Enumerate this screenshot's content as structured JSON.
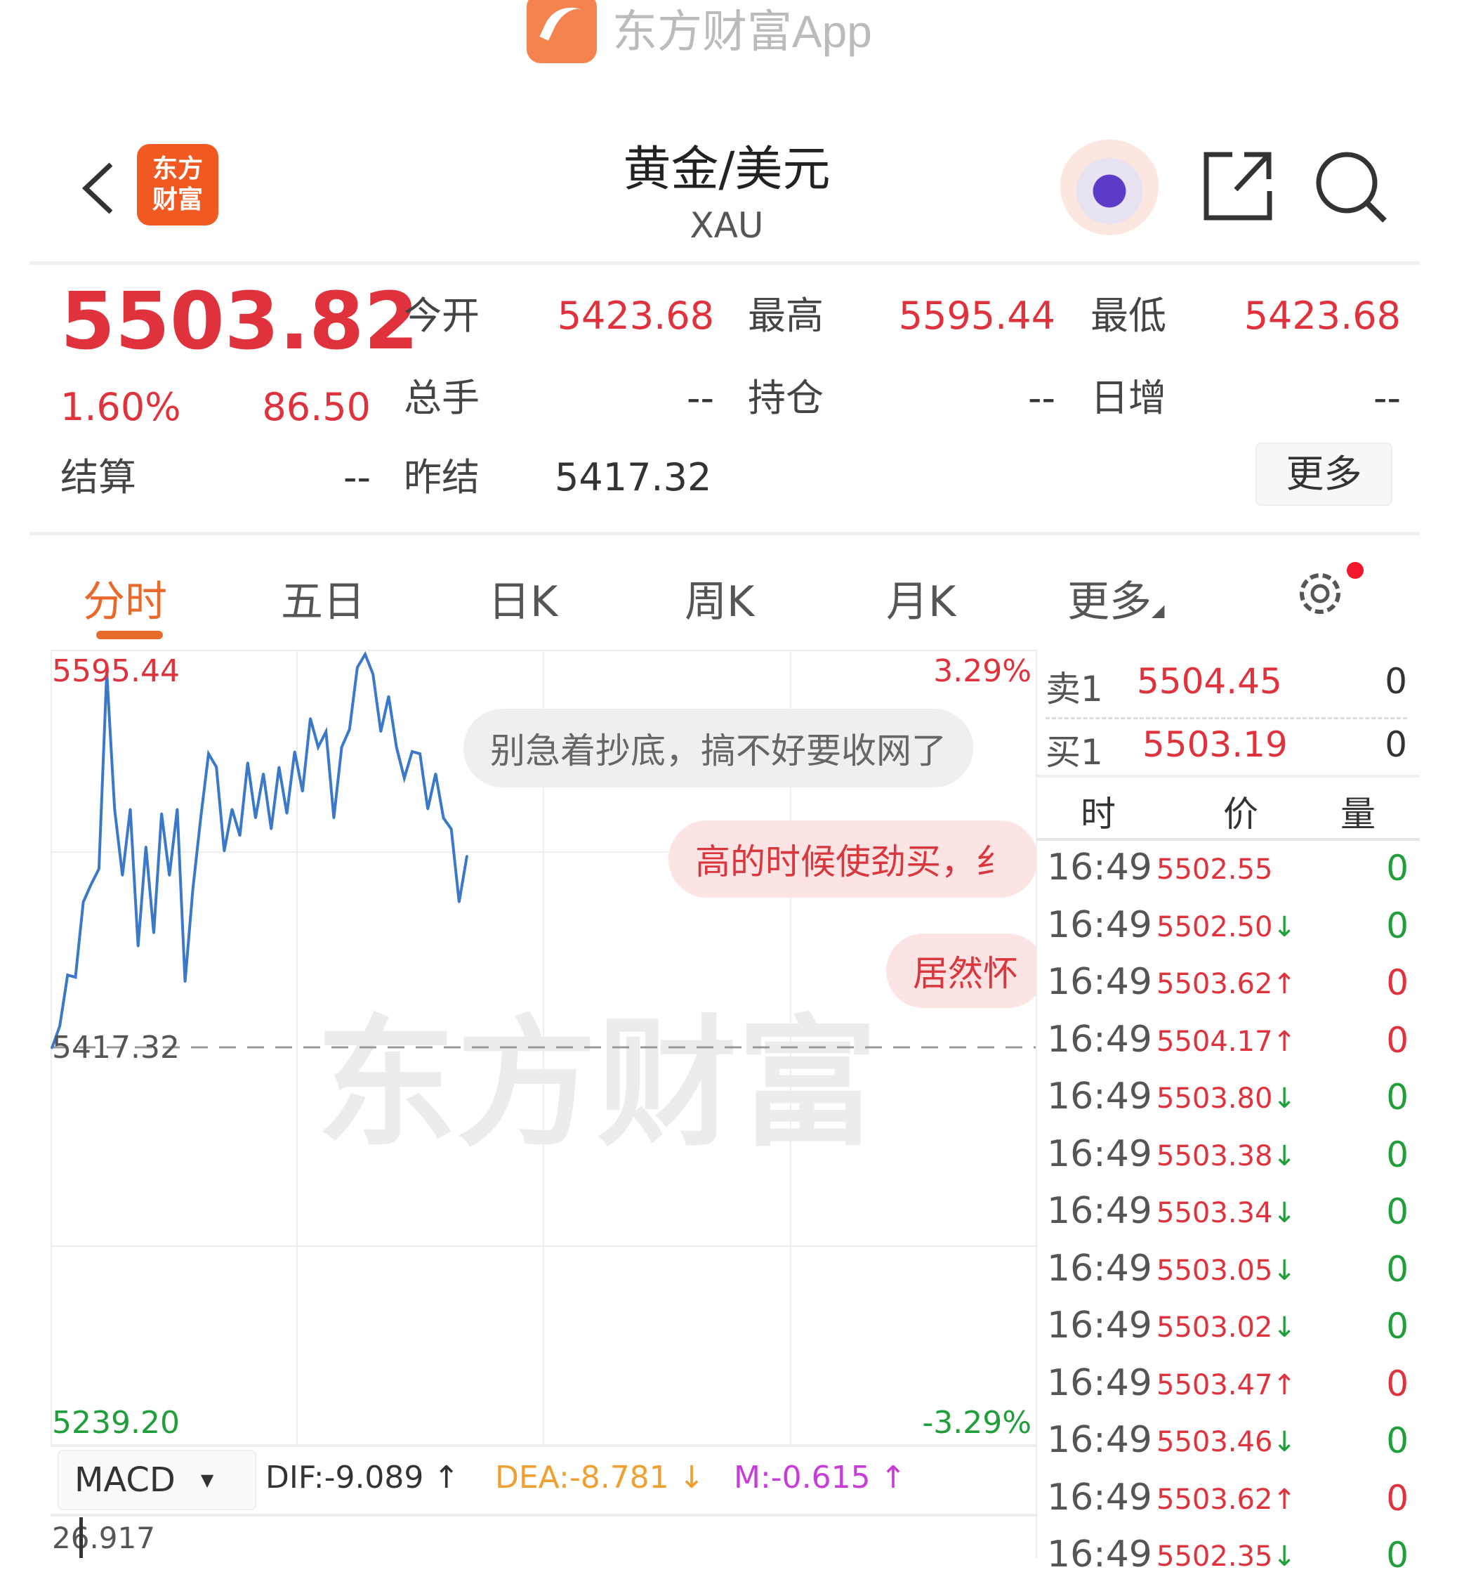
{
  "watermark_top": "东方财富App",
  "header": {
    "logo_text": "东方财富",
    "title": "黄金/美元",
    "symbol": "XAU"
  },
  "quote": {
    "price": "5503.82",
    "change_pct": "1.60%",
    "change": "86.50",
    "fields": [
      {
        "label": "今开",
        "value": "5423.68",
        "color": "red"
      },
      {
        "label": "最高",
        "value": "5595.44",
        "color": "red"
      },
      {
        "label": "最低",
        "value": "5423.68",
        "color": "red"
      },
      {
        "label": "总手",
        "value": "--"
      },
      {
        "label": "持仓",
        "value": "--"
      },
      {
        "label": "日增",
        "value": "--"
      },
      {
        "label": "结算",
        "value": "--"
      },
      {
        "label": "昨结",
        "value": "5417.32"
      }
    ],
    "more_label": "更多"
  },
  "tabs": [
    {
      "label": "分时",
      "active": true
    },
    {
      "label": "五日"
    },
    {
      "label": "日K"
    },
    {
      "label": "周K"
    },
    {
      "label": "月K"
    },
    {
      "label": "更多"
    }
  ],
  "colors": {
    "up": "#e0323c",
    "down": "#1f9e3a",
    "accent": "#e8692a",
    "line": "#3a78c9"
  },
  "chart_data": {
    "type": "line",
    "y_max_label": "5595.44",
    "y_mid_label": "5417.32",
    "y_min_label": "5239.20",
    "pct_max_label": "3.29%",
    "pct_min_label": "-3.29%",
    "ylim": [
      5239.2,
      5595.44
    ],
    "reference": 5417.32,
    "values": [
      5417,
      5427,
      5450,
      5449,
      5483,
      5491,
      5498,
      5587,
      5525,
      5495,
      5525,
      5463,
      5508,
      5469,
      5523,
      5495,
      5525,
      5447,
      5489,
      5521,
      5550,
      5544,
      5506,
      5525,
      5513,
      5546,
      5521,
      5541,
      5516,
      5544,
      5523,
      5551,
      5533,
      5566,
      5553,
      5560,
      5521,
      5553,
      5561,
      5589,
      5595,
      5586,
      5560,
      5576,
      5553,
      5539,
      5551,
      5550,
      5525,
      5541,
      5521,
      5516,
      5483,
      5503.82
    ]
  },
  "bubbles": [
    "别急着抄底，搞不好要收网了",
    "高的时候使劲买，纟",
    "居然怀"
  ],
  "watermark_center": "东方财富",
  "order_book": [
    {
      "label": "卖1",
      "price": "5504.45",
      "vol": "0"
    },
    {
      "label": "买1",
      "price": "5503.19",
      "vol": "0"
    }
  ],
  "ticks_header": {
    "time": "时",
    "price": "价",
    "vol": "量"
  },
  "ticks": [
    {
      "time": "16:49",
      "price": "5502.55",
      "dir": "",
      "vol": "0",
      "vcolor": "green"
    },
    {
      "time": "16:49",
      "price": "5502.50",
      "dir": "↓",
      "vol": "0",
      "vcolor": "green"
    },
    {
      "time": "16:49",
      "price": "5503.62",
      "dir": "↑",
      "vol": "0",
      "vcolor": "red"
    },
    {
      "time": "16:49",
      "price": "5504.17",
      "dir": "↑",
      "vol": "0",
      "vcolor": "red"
    },
    {
      "time": "16:49",
      "price": "5503.80",
      "dir": "↓",
      "vol": "0",
      "vcolor": "green"
    },
    {
      "time": "16:49",
      "price": "5503.38",
      "dir": "↓",
      "vol": "0",
      "vcolor": "green"
    },
    {
      "time": "16:49",
      "price": "5503.34",
      "dir": "↓",
      "vol": "0",
      "vcolor": "green"
    },
    {
      "time": "16:49",
      "price": "5503.05",
      "dir": "↓",
      "vol": "0",
      "vcolor": "green"
    },
    {
      "time": "16:49",
      "price": "5503.02",
      "dir": "↓",
      "vol": "0",
      "vcolor": "green"
    },
    {
      "time": "16:49",
      "price": "5503.47",
      "dir": "↑",
      "vol": "0",
      "vcolor": "red"
    },
    {
      "time": "16:49",
      "price": "5503.46",
      "dir": "↓",
      "vol": "0",
      "vcolor": "green"
    },
    {
      "time": "16:49",
      "price": "5503.62",
      "dir": "↑",
      "vol": "0",
      "vcolor": "red"
    },
    {
      "time": "16:49",
      "price": "5502.35",
      "dir": "↓",
      "vol": "0",
      "vcolor": "green"
    }
  ],
  "macd": {
    "selector": "MACD",
    "dif": "DIF:-9.089 ↑",
    "dea": "DEA:-8.781 ↓",
    "m": "M:-0.615 ↑",
    "top_label": "26.917"
  }
}
